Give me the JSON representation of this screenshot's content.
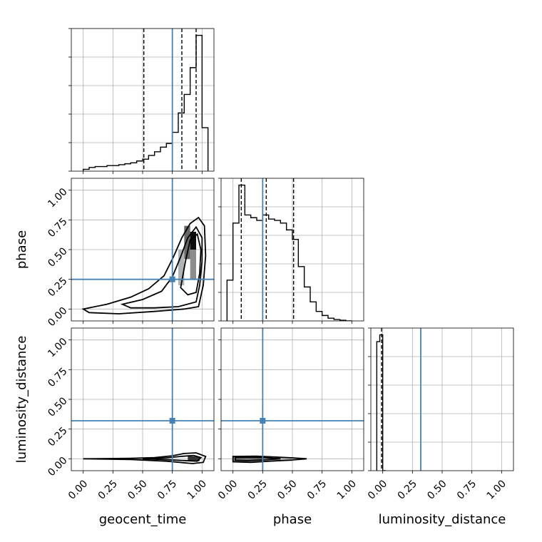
{
  "chart_data": {
    "type": "corner",
    "params": [
      "geocent_time",
      "phase",
      "luminosity_distance"
    ],
    "axis_range": [
      -0.1,
      1.1
    ],
    "ticks": [
      0.0,
      0.25,
      0.5,
      0.75,
      1.0
    ],
    "tick_labels": [
      "0.00",
      "0.25",
      "0.50",
      "0.75",
      "1.00"
    ],
    "grid": true,
    "truths": [
      0.75,
      0.25,
      0.32
    ],
    "truth_color": "#4682b4",
    "histograms": [
      {
        "param": "geocent_time",
        "bin_edges": [
          0.0,
          0.05,
          0.1,
          0.15,
          0.2,
          0.25,
          0.3,
          0.35,
          0.4,
          0.45,
          0.5,
          0.55,
          0.6,
          0.65,
          0.7,
          0.75,
          0.8,
          0.85,
          0.9,
          0.95,
          1.0,
          1.05
        ],
        "counts": [
          2,
          4,
          5,
          5,
          6,
          6,
          7,
          8,
          9,
          11,
          13,
          17,
          21,
          26,
          30,
          42,
          63,
          83,
          112,
          147,
          47
        ],
        "quantiles": [
          0.51,
          0.83,
          0.95
        ]
      },
      {
        "param": "phase",
        "bin_edges": [
          -0.05,
          0.0,
          0.05,
          0.1,
          0.15,
          0.2,
          0.25,
          0.3,
          0.35,
          0.4,
          0.45,
          0.5,
          0.55,
          0.6,
          0.65,
          0.7,
          0.75,
          0.8,
          0.85,
          0.9,
          0.95,
          1.0
        ],
        "counts": [
          30,
          72,
          100,
          78,
          76,
          74,
          78,
          75,
          74,
          72,
          67,
          60,
          40,
          25,
          14,
          7,
          4,
          2,
          1,
          0.5,
          0
        ],
        "quantiles": [
          0.07,
          0.28,
          0.51
        ]
      },
      {
        "param": "luminosity_distance",
        "bin_edges": [
          -0.05,
          -0.025,
          0.0,
          0.025
        ],
        "counts": [
          95,
          100,
          0
        ],
        "quantiles": [
          -0.01
        ]
      }
    ],
    "density": [
      {
        "x": "geocent_time",
        "y": "phase",
        "core": [
          {
            "x": 0.9,
            "y": 0.5,
            "w": 0.05,
            "h": 0.15,
            "shade": 0.95
          },
          {
            "x": 0.85,
            "y": 0.42,
            "w": 0.05,
            "h": 0.28,
            "shade": 0.6
          },
          {
            "x": 0.8,
            "y": 0.2,
            "w": 0.05,
            "h": 0.3,
            "shade": 0.3
          },
          {
            "x": 0.9,
            "y": 0.25,
            "w": 0.05,
            "h": 0.25,
            "shade": 0.45
          }
        ],
        "contours": [
          [
            [
              0.0,
              0.0
            ],
            [
              0.2,
              0.04
            ],
            [
              0.4,
              0.1
            ],
            [
              0.55,
              0.17
            ],
            [
              0.68,
              0.28
            ],
            [
              0.76,
              0.44
            ],
            [
              0.83,
              0.6
            ],
            [
              0.9,
              0.72
            ],
            [
              0.97,
              0.77
            ],
            [
              1.02,
              0.7
            ],
            [
              1.03,
              0.45
            ],
            [
              1.01,
              0.2
            ],
            [
              0.97,
              0.02
            ],
            [
              0.85,
              0.0
            ],
            [
              0.6,
              -0.02
            ],
            [
              0.3,
              -0.04
            ],
            [
              0.05,
              -0.03
            ]
          ],
          [
            [
              0.33,
              0.04
            ],
            [
              0.5,
              0.08
            ],
            [
              0.66,
              0.15
            ],
            [
              0.75,
              0.27
            ],
            [
              0.82,
              0.44
            ],
            [
              0.88,
              0.6
            ],
            [
              0.95,
              0.69
            ],
            [
              1.0,
              0.6
            ],
            [
              1.0,
              0.4
            ],
            [
              0.98,
              0.2
            ],
            [
              0.95,
              0.06
            ],
            [
              0.8,
              0.02
            ],
            [
              0.6,
              0.01
            ],
            [
              0.4,
              0.01
            ]
          ],
          [
            [
              0.82,
              0.18
            ],
            [
              0.86,
              0.4
            ],
            [
              0.9,
              0.58
            ],
            [
              0.96,
              0.63
            ],
            [
              0.99,
              0.5
            ],
            [
              0.98,
              0.3
            ],
            [
              0.95,
              0.14
            ],
            [
              0.88,
              0.12
            ]
          ]
        ]
      },
      {
        "x": "geocent_time",
        "y": "luminosity_distance",
        "core": [
          {
            "x": 0.88,
            "y": -0.02,
            "w": 0.1,
            "h": 0.04,
            "shade": 0.8
          }
        ],
        "contours": [
          [
            [
              0.0,
              0.0
            ],
            [
              0.4,
              0.004
            ],
            [
              0.6,
              0.01
            ],
            [
              0.75,
              0.025
            ],
            [
              0.85,
              0.045
            ],
            [
              0.95,
              0.05
            ],
            [
              1.03,
              0.02
            ],
            [
              1.01,
              -0.03
            ],
            [
              0.92,
              -0.04
            ],
            [
              0.7,
              -0.02
            ],
            [
              0.4,
              -0.006
            ]
          ],
          [
            [
              0.5,
              0.0
            ],
            [
              0.7,
              0.008
            ],
            [
              0.82,
              0.02
            ],
            [
              0.93,
              0.028
            ],
            [
              0.99,
              0.01
            ],
            [
              0.96,
              -0.02
            ],
            [
              0.85,
              -0.015
            ],
            [
              0.65,
              -0.005
            ]
          ]
        ]
      },
      {
        "x": "phase",
        "y": "luminosity_distance",
        "core": [
          {
            "x": 0.0,
            "y": -0.03,
            "w": 0.25,
            "h": 0.05,
            "shade": 0.5
          },
          {
            "x": 0.25,
            "y": -0.02,
            "w": 0.25,
            "h": 0.03,
            "shade": 0.25
          }
        ],
        "contours": [
          [
            [
              0.0,
              0.02
            ],
            [
              0.2,
              0.022
            ],
            [
              0.35,
              0.015
            ],
            [
              0.5,
              0.008
            ],
            [
              0.62,
              0.0
            ],
            [
              0.5,
              -0.01
            ],
            [
              0.35,
              -0.018
            ],
            [
              0.15,
              -0.03
            ],
            [
              0.0,
              -0.025
            ]
          ],
          [
            [
              0.02,
              0.01
            ],
            [
              0.15,
              0.012
            ],
            [
              0.28,
              0.008
            ],
            [
              0.4,
              0.0
            ],
            [
              0.28,
              -0.008
            ],
            [
              0.12,
              -0.015
            ],
            [
              0.02,
              -0.012
            ]
          ]
        ]
      }
    ]
  }
}
